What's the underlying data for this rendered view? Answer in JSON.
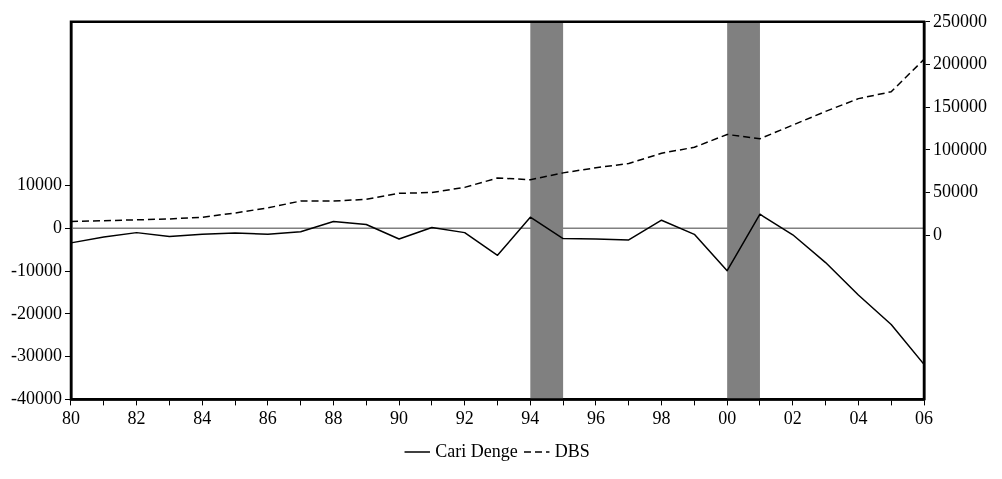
{
  "chart_data": {
    "type": "line",
    "x": [
      1980,
      1981,
      1982,
      1983,
      1984,
      1985,
      1986,
      1987,
      1988,
      1989,
      1990,
      1991,
      1992,
      1993,
      1994,
      1995,
      1996,
      1997,
      1998,
      1999,
      2000,
      2001,
      2002,
      2003,
      2004,
      2005,
      2006
    ],
    "series": [
      {
        "name": "Cari Denge",
        "color": "#000000",
        "line_style": "solid",
        "values": [
          -3400,
          -2000,
          -1000,
          -1900,
          -1400,
          -1100,
          -1400,
          -800,
          1600,
          900,
          -2500,
          200,
          -1000,
          -6300,
          2600,
          -2400,
          -2500,
          -2700,
          1900,
          -1400,
          -9900,
          3300,
          -1500,
          -8000,
          -15600,
          -22500,
          -31800
        ]
      },
      {
        "name": "DBS",
        "color": "#000000",
        "line_style": "dashed",
        "axis": "y2",
        "values": [
          16000,
          17000,
          18000,
          19000,
          21000,
          26000,
          32000,
          40000,
          40000,
          42000,
          49000,
          50000,
          56000,
          67000,
          65000,
          73000,
          79000,
          84000,
          96000,
          103000,
          118000,
          113000,
          129000,
          145000,
          160000,
          168000,
          206000
        ]
      }
    ],
    "xlim": [
      1980,
      2006
    ],
    "xticks": [
      {
        "value": 1980,
        "label": "80"
      },
      {
        "value": 1981,
        "label": null
      },
      {
        "value": 1982,
        "label": "82"
      },
      {
        "value": 1983,
        "label": null
      },
      {
        "value": 1984,
        "label": "84"
      },
      {
        "value": 1985,
        "label": null
      },
      {
        "value": 1986,
        "label": "86"
      },
      {
        "value": 1987,
        "label": null
      },
      {
        "value": 1988,
        "label": "88"
      },
      {
        "value": 1989,
        "label": null
      },
      {
        "value": 1990,
        "label": "90"
      },
      {
        "value": 1991,
        "label": null
      },
      {
        "value": 1992,
        "label": "92"
      },
      {
        "value": 1993,
        "label": null
      },
      {
        "value": 1994,
        "label": "94"
      },
      {
        "value": 1995,
        "label": null
      },
      {
        "value": 1996,
        "label": "96"
      },
      {
        "value": 1997,
        "label": null
      },
      {
        "value": 1998,
        "label": "98"
      },
      {
        "value": 1999,
        "label": null
      },
      {
        "value": 2000,
        "label": "00"
      },
      {
        "value": 2001,
        "label": null
      },
      {
        "value": 2002,
        "label": "02"
      },
      {
        "value": 2003,
        "label": null
      },
      {
        "value": 2004,
        "label": "04"
      },
      {
        "value": 2005,
        "label": null
      },
      {
        "value": 2006,
        "label": "06"
      }
    ],
    "ylim": [
      -40000,
      48300
    ],
    "yticks": [
      -40000,
      -30000,
      -20000,
      -10000,
      0,
      10000
    ],
    "y2lim": [
      -192400,
      250000
    ],
    "y2ticks": [
      0,
      50000,
      100000,
      150000,
      200000,
      250000
    ],
    "bands": [
      {
        "axis": "x",
        "from": 1994,
        "to": 1995,
        "color": "#808080"
      },
      {
        "axis": "x",
        "from": 2000,
        "to": 2001,
        "color": "#808080"
      }
    ],
    "ref_lines": [
      {
        "axis": "y",
        "value": 0,
        "color": "#808080"
      }
    ],
    "grid": false,
    "legend": "bottom",
    "marker": "none"
  }
}
